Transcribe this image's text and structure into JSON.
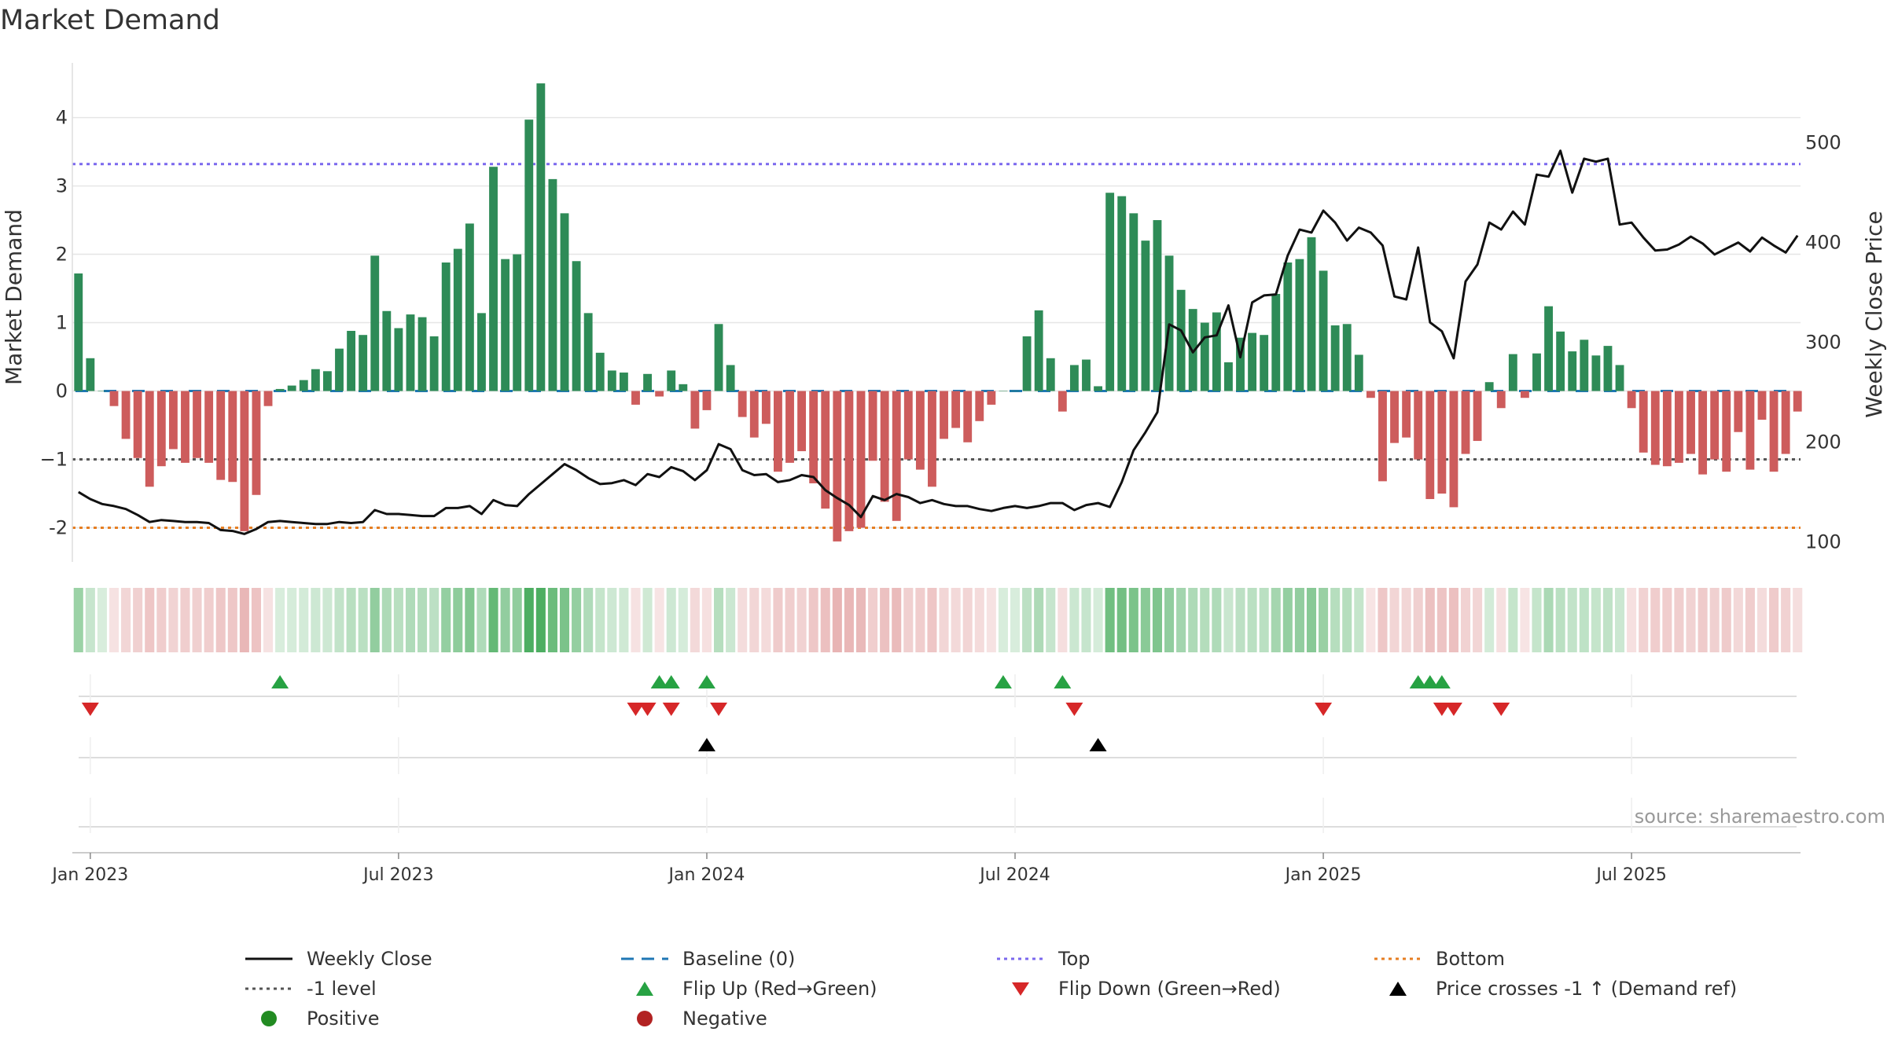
{
  "title": "Market Demand",
  "source_text": "source: sharemaestro.com",
  "colors": {
    "pos_bar": "#2e8b57",
    "neg_bar": "#cd5c5c",
    "line": "#111111",
    "baseline": "#1f77b4",
    "top": "#7b68ee",
    "bottom": "#e67e22",
    "minus1": "#555555",
    "flip_up": "#27a243",
    "flip_down": "#d62728",
    "cross": "#000000",
    "positive_dot": "#228b22",
    "negative_dot": "#b22222",
    "grid": "#e6e6e6"
  },
  "legend": {
    "items": [
      {
        "label": "Weekly Close",
        "kind": "line"
      },
      {
        "label": "Baseline (0)",
        "kind": "dash-blue"
      },
      {
        "label": "Top",
        "kind": "dot-purple"
      },
      {
        "label": "Bottom",
        "kind": "dot-orange"
      },
      {
        "label": "-1 level",
        "kind": "dot-gray"
      },
      {
        "label": "Flip Up (Red→Green)",
        "kind": "tri-up-green"
      },
      {
        "label": "Flip Down (Green→Red)",
        "kind": "tri-down-red"
      },
      {
        "label": "Price crosses -1 ↑ (Demand ref)",
        "kind": "tri-up-black"
      },
      {
        "label": "Positive",
        "kind": "dot-green"
      },
      {
        "label": "Negative",
        "kind": "dot-red"
      }
    ]
  },
  "chart_data": {
    "type": "bar",
    "title": "Market Demand",
    "ylabel": "Market Demand",
    "y2label": "Weekly Close Price",
    "ylim": [
      -2.5,
      4.8
    ],
    "y2lim": [
      80,
      580
    ],
    "yticks": [
      "-2",
      "−1",
      "0",
      "1",
      "2",
      "3",
      "4"
    ],
    "yticks_values": [
      -2,
      -1,
      0,
      1,
      2,
      3,
      4
    ],
    "y2ticks": [
      "100",
      "200",
      "300",
      "400",
      "500"
    ],
    "y2ticks_values": [
      100,
      200,
      300,
      400,
      500
    ],
    "xticks": [
      "Jan 2023",
      "Jul 2023",
      "Jan 2024",
      "Jul 2024",
      "Jan 2025",
      "Jul 2025"
    ],
    "xticks_week_index": [
      1,
      27,
      53,
      79,
      105,
      131
    ],
    "reference_lines": {
      "top": 3.32,
      "bottom": -2.0,
      "minus1": -1.0,
      "baseline": 0
    },
    "demand": [
      1.72,
      0.48,
      0,
      -0.22,
      -0.7,
      -0.98,
      -1.4,
      -1.1,
      -0.85,
      -1.05,
      -0.98,
      -1.05,
      -1.3,
      -1.33,
      -2.05,
      -1.52,
      -0.22,
      0.03,
      0.08,
      0.16,
      0.32,
      0.29,
      0.62,
      0.88,
      0.82,
      1.98,
      1.17,
      0.92,
      1.12,
      1.08,
      0.8,
      1.88,
      2.08,
      2.45,
      1.14,
      3.28,
      1.93,
      2.0,
      3.97,
      4.5,
      3.1,
      2.6,
      1.9,
      1.14,
      0.56,
      0.3,
      0.27,
      -0.2,
      0.25,
      -0.08,
      0.3,
      0.1,
      -0.55,
      -0.28,
      0.98,
      0.38,
      -0.38,
      -0.68,
      -0.48,
      -1.18,
      -1.05,
      -0.88,
      -1.35,
      -1.72,
      -2.2,
      -2.05,
      -2.0,
      -1.02,
      -1.62,
      -1.9,
      -1.0,
      -1.15,
      -1.4,
      -0.7,
      -0.54,
      -0.75,
      -0.44,
      -0.2,
      0,
      0,
      0.8,
      1.18,
      0.48,
      -0.3,
      0.38,
      0.46,
      0.07,
      2.9,
      2.85,
      2.6,
      2.2,
      2.5,
      1.98,
      1.48,
      1.2,
      1.0,
      1.15,
      0.42,
      0.78,
      0.85,
      0.82,
      1.42,
      1.88,
      1.93,
      2.25,
      1.76,
      0.96,
      0.98,
      0.53,
      -0.1,
      -1.32,
      -0.76,
      -0.68,
      -1.0,
      -1.58,
      -1.5,
      -1.7,
      -0.92,
      -0.73,
      0.13,
      -0.25,
      0.54,
      -0.1,
      0.55,
      1.24,
      0.87,
      0.58,
      0.75,
      0.52,
      0.66,
      0.38,
      -0.25,
      -0.9,
      -1.08,
      -1.1,
      -1.05,
      -0.92,
      -1.22,
      -1.0,
      -1.18,
      -0.6,
      -1.15,
      -0.42,
      -1.18,
      -0.92,
      -0.3
    ],
    "price": [
      150,
      143,
      138,
      136,
      133,
      127,
      120,
      122,
      121,
      120,
      120,
      119,
      112,
      111,
      108,
      113,
      120,
      121,
      120,
      119,
      118,
      118,
      120,
      119,
      120,
      132,
      128,
      128,
      127,
      126,
      126,
      134,
      134,
      136,
      128,
      142,
      137,
      136,
      148,
      158,
      168,
      178,
      172,
      164,
      158,
      159,
      162,
      157,
      168,
      165,
      175,
      171,
      162,
      172,
      198,
      193,
      172,
      167,
      168,
      160,
      162,
      167,
      165,
      152,
      144,
      137,
      125,
      146,
      142,
      148,
      145,
      139,
      142,
      138,
      136,
      136,
      133,
      131,
      134,
      136,
      134,
      136,
      139,
      139,
      132,
      137,
      139,
      135,
      160,
      192,
      210,
      230,
      318,
      312,
      290,
      305,
      307,
      337,
      285,
      340,
      347,
      348,
      387,
      413,
      410,
      432,
      420,
      402,
      415,
      410,
      397,
      346,
      343,
      395,
      320,
      311,
      284,
      361,
      378,
      420,
      413,
      431,
      418,
      468,
      466,
      492,
      450,
      484,
      481,
      484,
      418,
      420,
      405,
      392,
      393,
      398,
      406,
      399,
      388,
      394,
      400,
      391,
      405,
      397,
      390,
      407
    ],
    "heat_band": "strip under chart: one cell per week, green intensity for positive demand, red intensity for negative demand",
    "flip_up_weeks": [
      17,
      49,
      50,
      53,
      78,
      83,
      113,
      114,
      115
    ],
    "flip_down_weeks": [
      1,
      47,
      48,
      50,
      54,
      84,
      105,
      115,
      116,
      120
    ],
    "cross_up_weeks": [
      53,
      86
    ],
    "n_weeks": 146
  }
}
